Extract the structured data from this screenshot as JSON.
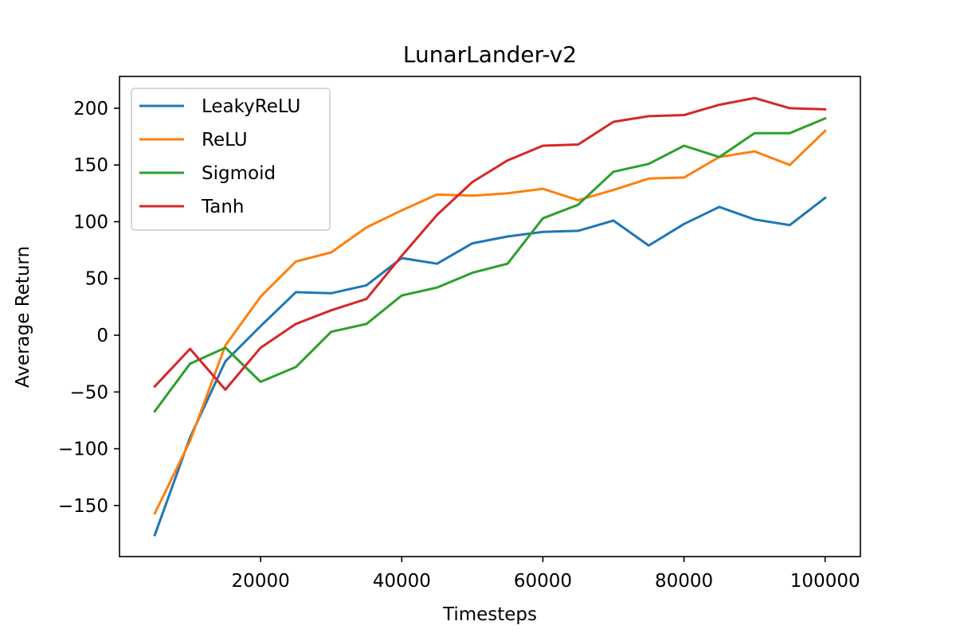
{
  "chart_data": {
    "type": "line",
    "title": "LunarLander-v2",
    "xlabel": "Timesteps",
    "ylabel": "Average Return",
    "x": [
      5000,
      10000,
      15000,
      20000,
      25000,
      30000,
      35000,
      40000,
      45000,
      50000,
      55000,
      60000,
      65000,
      70000,
      75000,
      80000,
      85000,
      90000,
      95000,
      100000
    ],
    "xlim": [
      0,
      105000
    ],
    "ylim": [
      -195,
      228
    ],
    "xticks": [
      20000,
      40000,
      60000,
      80000,
      100000
    ],
    "yticks": [
      -150,
      -100,
      -50,
      0,
      50,
      100,
      150,
      200
    ],
    "xtick_labels": [
      "20000",
      "40000",
      "60000",
      "80000",
      "100000"
    ],
    "ytick_labels": [
      "−150",
      "−100",
      "−50",
      "0",
      "50",
      "100",
      "150",
      "200"
    ],
    "grid": false,
    "legend_position": "top-left",
    "series": [
      {
        "name": "LeakyReLU",
        "color": "#1f77b4",
        "values": [
          -176,
          -90,
          -23,
          8,
          38,
          37,
          44,
          68,
          63,
          81,
          87,
          91,
          92,
          101,
          79,
          98,
          113,
          102,
          97,
          121
        ]
      },
      {
        "name": "ReLU",
        "color": "#ff7f0e",
        "values": [
          -157,
          -93,
          -9,
          34,
          65,
          73,
          95,
          110,
          124,
          123,
          125,
          129,
          119,
          128,
          138,
          139,
          157,
          162,
          150,
          180
        ]
      },
      {
        "name": "Sigmoid",
        "color": "#2ca02c",
        "values": [
          -67,
          -25,
          -11,
          -41,
          -28,
          3,
          10,
          35,
          42,
          55,
          63,
          103,
          115,
          144,
          151,
          167,
          157,
          178,
          178,
          191
        ]
      },
      {
        "name": "Tanh",
        "color": "#d62728",
        "values": [
          -45,
          -12,
          -48,
          -11,
          10,
          22,
          32,
          70,
          106,
          135,
          154,
          167,
          168,
          188,
          193,
          194,
          203,
          209,
          200,
          199
        ]
      }
    ]
  }
}
